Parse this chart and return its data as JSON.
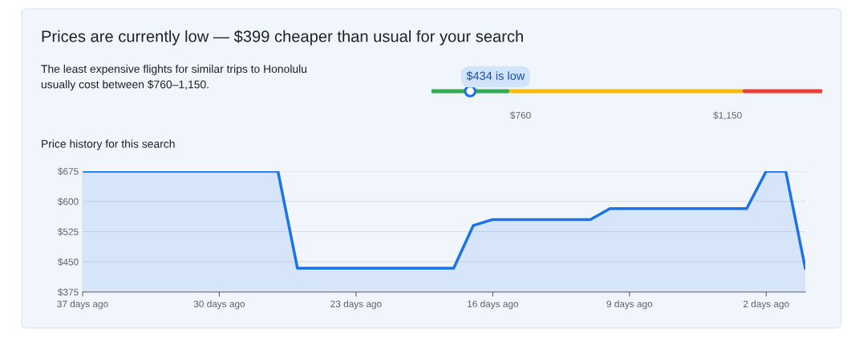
{
  "chart_data": [
    {
      "type": "other",
      "title": "Prices are currently low — $399 cheaper than usual for your search",
      "subtitle": "The least expensive flights for similar trips to Honolulu\nusually cost between $760–1,150.",
      "annotations": [
        "$434 is low",
        "$760",
        "$1,150"
      ],
      "colors": [
        "#34a853",
        "#fbbc04",
        "#ea4335"
      ]
    },
    {
      "type": "area",
      "title": "Price history for this search",
      "x": [
        -37,
        -27,
        -26,
        -18,
        -17,
        -16,
        -11,
        -10,
        -3,
        -2,
        -1,
        0
      ],
      "series": [
        {
          "color": "#1a73e8",
          "values": [
            675,
            675,
            434,
            434,
            540,
            555,
            555,
            582,
            582,
            675,
            675,
            434
          ]
        }
      ],
      "xlim": [
        -37,
        0
      ],
      "xticks": [
        {
          "value": -37,
          "label": "37 days ago"
        },
        {
          "value": -30,
          "label": "30 days ago"
        },
        {
          "value": -23,
          "label": "23 days ago"
        },
        {
          "value": -16,
          "label": "16 days ago"
        },
        {
          "value": -9,
          "label": "9 days ago"
        },
        {
          "value": -2,
          "label": "2 days ago"
        }
      ],
      "ylim": [
        375,
        675
      ],
      "yticks": [
        {
          "value": 375,
          "label": "$375"
        },
        {
          "value": 450,
          "label": "$450"
        },
        {
          "value": 525,
          "label": "$525"
        },
        {
          "value": 600,
          "label": "$600"
        },
        {
          "value": 675,
          "label": "$675"
        }
      ],
      "grid": "y"
    }
  ]
}
